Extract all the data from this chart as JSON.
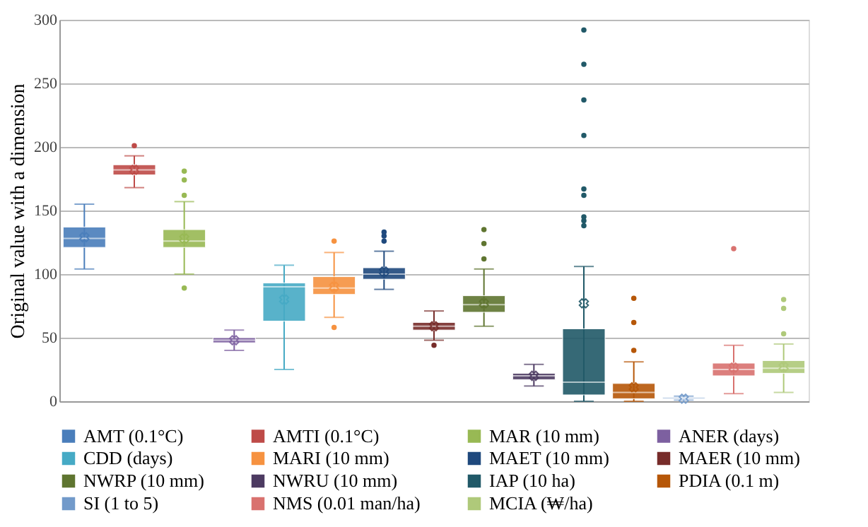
{
  "chart_data": {
    "type": "box",
    "ylabel": "Original value with a dimension",
    "categories": [
      null,
      null,
      null,
      null,
      null,
      null,
      null,
      null,
      null,
      null,
      null,
      null,
      null,
      null,
      null
    ],
    "ylim": [
      0,
      300
    ],
    "yticks": [
      0,
      50,
      100,
      150,
      200,
      250,
      300
    ],
    "grid": "y",
    "legend": "bottom",
    "tick_labels": "y",
    "series": [
      {
        "name": "AMT (0.1°C)",
        "color": "#4a7ebb",
        "boxes": [
          {
            "low": 104,
            "q1": 121,
            "median": 128,
            "q3": 137,
            "high": 155,
            "mean": 129
          },
          null,
          null,
          null,
          null,
          null,
          null,
          null,
          null,
          null,
          null,
          null,
          null,
          null,
          null
        ]
      },
      {
        "name": "AMTI (0.1°C)",
        "color": "#be4b48",
        "boxes": [
          null,
          {
            "low": 168,
            "q1": 178,
            "median": 182,
            "q3": 186,
            "high": 193,
            "mean": 182,
            "outliers": [
              201
            ]
          },
          null,
          null,
          null,
          null,
          null,
          null,
          null,
          null,
          null,
          null,
          null,
          null,
          null
        ]
      },
      {
        "name": "MAR (10 mm)",
        "color": "#98b954",
        "boxes": [
          null,
          null,
          {
            "low": 100,
            "q1": 121,
            "median": 126,
            "q3": 135,
            "high": 157,
            "mean": 128,
            "outliers": [
              89,
              162,
              174,
              181
            ]
          },
          null,
          null,
          null,
          null,
          null,
          null,
          null,
          null,
          null,
          null,
          null,
          null
        ]
      },
      {
        "name": "ANER (days)",
        "color": "#7d60a0",
        "boxes": [
          null,
          null,
          null,
          {
            "low": 40,
            "q1": 46,
            "median": 48,
            "q3": 50,
            "high": 56,
            "mean": 48
          },
          null,
          null,
          null,
          null,
          null,
          null,
          null,
          null,
          null,
          null,
          null
        ]
      },
      {
        "name": "CDD (days)",
        "color": "#46aac5",
        "boxes": [
          null,
          null,
          null,
          null,
          {
            "low": 25,
            "q1": 63,
            "median": 90,
            "q3": 93,
            "high": 107,
            "mean": 80
          },
          null,
          null,
          null,
          null,
          null,
          null,
          null,
          null,
          null,
          null
        ]
      },
      {
        "name": "MARI (10 mm)",
        "color": "#f69240",
        "boxes": [
          null,
          null,
          null,
          null,
          null,
          {
            "low": 66,
            "q1": 84,
            "median": 89,
            "q3": 98,
            "high": 117,
            "mean": 90,
            "outliers": [
              58,
              126
            ]
          },
          null,
          null,
          null,
          null,
          null,
          null,
          null,
          null,
          null
        ]
      },
      {
        "name": "MAET (10 mm)",
        "color": "#1f497d",
        "boxes": [
          null,
          null,
          null,
          null,
          null,
          null,
          {
            "low": 88,
            "q1": 96,
            "median": 100,
            "q3": 105,
            "high": 118,
            "mean": 102,
            "outliers": [
              126,
              130,
              133
            ]
          },
          null,
          null,
          null,
          null,
          null,
          null,
          null,
          null
        ]
      },
      {
        "name": "MAER (10 mm)",
        "color": "#772c2a",
        "boxes": [
          null,
          null,
          null,
          null,
          null,
          null,
          null,
          {
            "low": 48,
            "q1": 56,
            "median": 59,
            "q3": 62,
            "high": 71,
            "mean": 59,
            "outliers": [
              44
            ]
          },
          null,
          null,
          null,
          null,
          null,
          null,
          null
        ]
      },
      {
        "name": "NWRP (10 mm)",
        "color": "#5f7530",
        "boxes": [
          null,
          null,
          null,
          null,
          null,
          null,
          null,
          null,
          {
            "low": 59,
            "q1": 70,
            "median": 76,
            "q3": 83,
            "high": 104,
            "mean": 77,
            "outliers": [
              112,
              124,
              135
            ]
          },
          null,
          null,
          null,
          null,
          null,
          null
        ]
      },
      {
        "name": "NWRU (10 mm)",
        "color": "#4d3b62",
        "boxes": [
          null,
          null,
          null,
          null,
          null,
          null,
          null,
          null,
          null,
          {
            "low": 12,
            "q1": 17,
            "median": 20,
            "q3": 22,
            "high": 29,
            "mean": 20
          },
          null,
          null,
          null,
          null,
          null
        ]
      },
      {
        "name": "IAP (10 ha)",
        "color": "#215968",
        "boxes": [
          null,
          null,
          null,
          null,
          null,
          null,
          null,
          null,
          null,
          null,
          {
            "low": 0,
            "q1": 5,
            "median": 15,
            "q3": 57,
            "high": 106,
            "mean": 77,
            "outliers": [
              138,
              142,
              145,
              162,
              167,
              209,
              237,
              265,
              292
            ]
          },
          null,
          null,
          null,
          null
        ]
      },
      {
        "name": "PDIA (0.1 m)",
        "color": "#b65708",
        "boxes": [
          null,
          null,
          null,
          null,
          null,
          null,
          null,
          null,
          null,
          null,
          null,
          {
            "low": 0,
            "q1": 2,
            "median": 7,
            "q3": 14,
            "high": 31,
            "mean": 11,
            "outliers": [
              40,
              62,
              81
            ]
          },
          null,
          null,
          null
        ]
      },
      {
        "name": "SI (1 to 5)",
        "color": "#729aca",
        "boxes": [
          null,
          null,
          null,
          null,
          null,
          null,
          null,
          null,
          null,
          null,
          null,
          null,
          {
            "low": 1,
            "q1": 2,
            "median": 2,
            "q3": 3,
            "high": 4,
            "mean": 2
          },
          null,
          null
        ]
      },
      {
        "name": "NMS (0.01 man/ha)",
        "color": "#d9726f",
        "boxes": [
          null,
          null,
          null,
          null,
          null,
          null,
          null,
          null,
          null,
          null,
          null,
          null,
          null,
          {
            "low": 6,
            "q1": 20,
            "median": 25,
            "q3": 30,
            "high": 44,
            "mean": 26.5,
            "outliers": [
              120
            ]
          },
          null
        ]
      },
      {
        "name": "MCIA (₩/ha)",
        "color": "#afc97a",
        "boxes": [
          null,
          null,
          null,
          null,
          null,
          null,
          null,
          null,
          null,
          null,
          null,
          null,
          null,
          null,
          {
            "low": 7,
            "q1": 22,
            "median": 26,
            "q3": 32,
            "high": 45,
            "mean": 27,
            "outliers": [
              53,
              73,
              80
            ]
          }
        ]
      }
    ]
  }
}
